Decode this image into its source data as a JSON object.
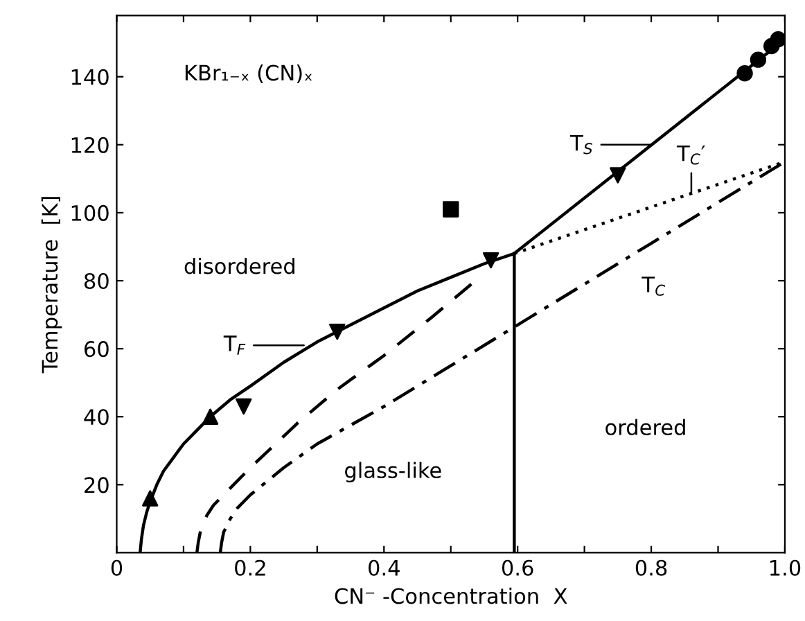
{
  "chart_data": {
    "type": "line",
    "xlabel": "CN⁻ -Concentration  X",
    "ylabel": "Temperature  [K]",
    "xlim": [
      0,
      1
    ],
    "ylim": [
      0,
      158
    ],
    "xticks": [
      0,
      {
        "value": 0.1,
        "label": null
      },
      0.2,
      {
        "value": 0.3,
        "label": null
      },
      0.4,
      {
        "value": 0.5,
        "label": null
      },
      0.6,
      {
        "value": 0.7,
        "label": null
      },
      0.8,
      {
        "value": 0.9,
        "label": null
      },
      {
        "value": 1,
        "label": "1.0"
      }
    ],
    "yticks": [
      20,
      40,
      60,
      80,
      100,
      120,
      140
    ],
    "grid": false,
    "legend": false,
    "series": [
      {
        "color": "#000000",
        "line_style": "solid",
        "marker": "none",
        "x": [
          0.035,
          0.037,
          0.04,
          0.045,
          0.05,
          0.06,
          0.07,
          0.085,
          0.1,
          0.12,
          0.14,
          0.17,
          0.2,
          0.25,
          0.3,
          0.35,
          0.4,
          0.45,
          0.5,
          0.55,
          0.595,
          1.0
        ],
        "values": [
          0,
          4,
          8,
          12,
          15,
          20,
          24,
          28,
          32,
          36,
          40,
          45,
          49,
          56,
          62,
          67,
          72,
          77,
          81,
          85,
          88,
          151
        ]
      },
      {
        "color": "#000000",
        "line_style": "solid",
        "marker": "none",
        "x": [
          0.595,
          0.595
        ],
        "values": [
          0,
          88
        ]
      },
      {
        "color": "#000000",
        "line_style": "dotted",
        "marker": "none",
        "x": [
          0.595,
          1.0
        ],
        "values": [
          88,
          115
        ]
      },
      {
        "color": "#000000",
        "line_style": "dashed",
        "marker": "none",
        "x": [
          0.12,
          0.122,
          0.126,
          0.135,
          0.145,
          0.16,
          0.18,
          0.2,
          0.27,
          0.33,
          0.4,
          0.47,
          0.537
        ],
        "values": [
          0,
          3,
          7,
          11,
          14,
          17,
          21,
          25,
          38,
          48,
          58,
          69,
          80
        ]
      },
      {
        "color": "#000000",
        "line_style": "dashdot",
        "marker": "none",
        "x": [
          0.155,
          0.157,
          0.16,
          0.165,
          0.17,
          0.18,
          0.2,
          0.25,
          0.3,
          0.4,
          0.5,
          0.6,
          0.7,
          0.8,
          0.9,
          1.0
        ],
        "values": [
          0,
          3,
          6,
          8,
          10,
          13,
          17,
          25,
          32,
          43,
          55,
          67,
          79,
          91,
          103,
          115
        ]
      },
      {
        "type": "scatter",
        "color": "#000000",
        "marker": "triangle",
        "x": [
          0.05,
          0.14
        ],
        "values": [
          16,
          40
        ]
      },
      {
        "type": "scatter",
        "color": "#000000",
        "marker": "triangle_down",
        "x": [
          0.19,
          0.33,
          0.56,
          0.75
        ],
        "values": [
          43,
          65,
          86,
          111
        ]
      },
      {
        "type": "scatter",
        "color": "#000000",
        "marker": "square",
        "x": [
          0.5
        ],
        "values": [
          101
        ]
      },
      {
        "type": "scatter",
        "color": "#000000",
        "marker": "circle",
        "x": [
          0.94,
          0.96,
          0.98,
          0.99
        ],
        "values": [
          141,
          145,
          149,
          151
        ]
      }
    ],
    "annotations": [
      "KBr₁₋ₓ (CN)ₓ",
      "disordered",
      "glass-like",
      "ordered",
      {
        "text": "T$_{S}$",
        "x": 0.8,
        "y": 120
      },
      {
        "text": "T$_{F}$",
        "x": 0.28,
        "y": 61
      },
      {
        "text": "T$_{C}$′",
        "x": 0.86,
        "y": 106
      },
      {
        "text": "T$_{C}$",
        "x": 0.78,
        "y": 91
      }
    ]
  }
}
